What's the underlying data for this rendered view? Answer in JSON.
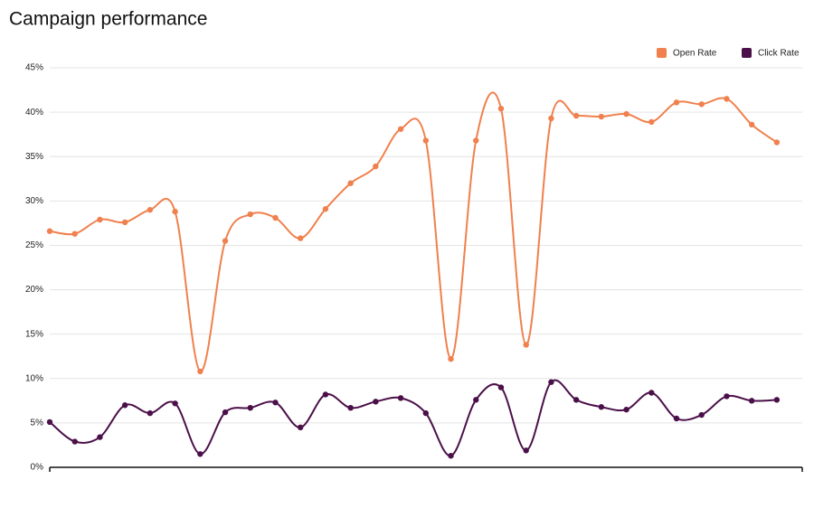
{
  "chart_data": {
    "type": "line",
    "title": "Campaign performance",
    "categories": [
      null,
      null,
      null,
      null,
      null,
      null,
      null,
      null,
      null,
      null,
      null,
      null,
      null,
      null,
      null,
      null,
      null,
      null,
      null,
      null,
      null,
      null,
      null,
      null,
      null,
      null,
      null,
      null,
      null,
      null
    ],
    "series": [
      {
        "name": "Open Rate",
        "color": "#f0804d",
        "values": [
          26.6,
          26.3,
          27.9,
          27.6,
          29.0,
          28.8,
          10.8,
          25.5,
          28.5,
          28.1,
          25.8,
          29.1,
          32.0,
          33.9,
          38.1,
          36.8,
          12.2,
          36.8,
          40.4,
          13.8,
          39.3,
          39.6,
          39.5,
          39.8,
          38.9,
          41.1,
          40.9,
          41.5,
          38.6,
          36.6
        ]
      },
      {
        "name": "Click Rate",
        "color": "#4b1049",
        "values": [
          5.1,
          2.9,
          3.4,
          7.0,
          6.1,
          7.2,
          1.5,
          6.2,
          6.7,
          7.3,
          4.5,
          8.2,
          6.7,
          7.4,
          7.8,
          6.1,
          1.3,
          7.6,
          9.0,
          1.9,
          9.6,
          7.6,
          6.8,
          6.5,
          8.4,
          5.5,
          5.9,
          8.0,
          7.5,
          7.6
        ]
      }
    ],
    "ylim": [
      0,
      45
    ],
    "yticks": [
      {
        "value": 0,
        "label": "0%"
      },
      {
        "value": 5,
        "label": "5%"
      },
      {
        "value": 10,
        "label": "10%"
      },
      {
        "value": 15,
        "label": "15%"
      },
      {
        "value": 20,
        "label": "20%"
      },
      {
        "value": 25,
        "label": "25%"
      },
      {
        "value": 30,
        "label": "30%"
      },
      {
        "value": 35,
        "label": "35%"
      },
      {
        "value": 40,
        "label": "40%"
      },
      {
        "value": 45,
        "label": "45%"
      }
    ],
    "grid": true,
    "legend": "upper right"
  }
}
